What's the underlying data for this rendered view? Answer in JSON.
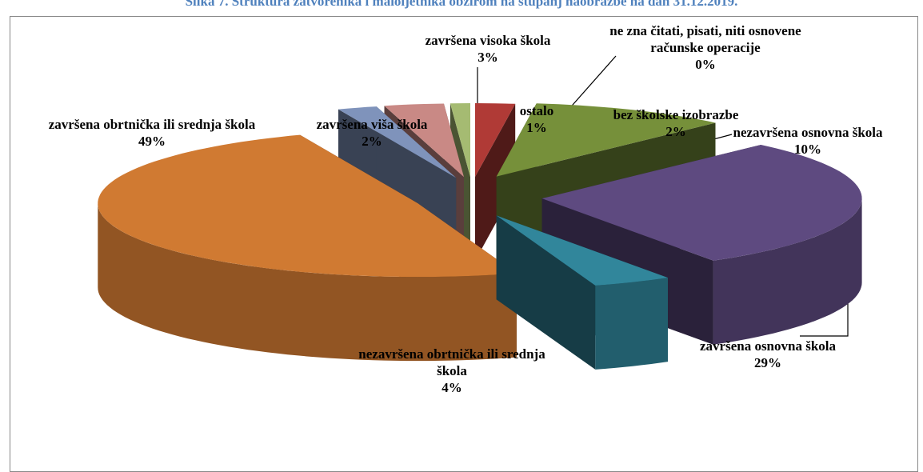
{
  "chart_data": {
    "type": "pie3d",
    "title": "Slika 7. Struktura zatvorenika i maloljetnika obzirom na stupanj naobrazbe na dan 31.12.2019.",
    "categories": [
      "bez školske izobrazbe",
      "nezavršena osnovna škola",
      "završena osnovna škola",
      "nezavršena obrtnička ili srednja škola",
      "završena obrtnička ili srednja škola",
      "završena viša škola",
      "završena visoka škola",
      "ostalo",
      "ne zna čitati, pisati, niti osnovene računske operacije"
    ],
    "values": [
      2,
      10,
      29,
      4,
      49,
      2,
      3,
      1,
      0
    ],
    "value_labels": [
      "2%",
      "10%",
      "29%",
      "4%",
      "49%",
      "2%",
      "3%",
      "1%",
      "0%"
    ],
    "colors": [
      "#b03a36",
      "#76903a",
      "#5e4a80",
      "#31869b",
      "#d07a32",
      "#7f93bb",
      "#c98985",
      "#a5bb72",
      "#4f81bd"
    ]
  }
}
